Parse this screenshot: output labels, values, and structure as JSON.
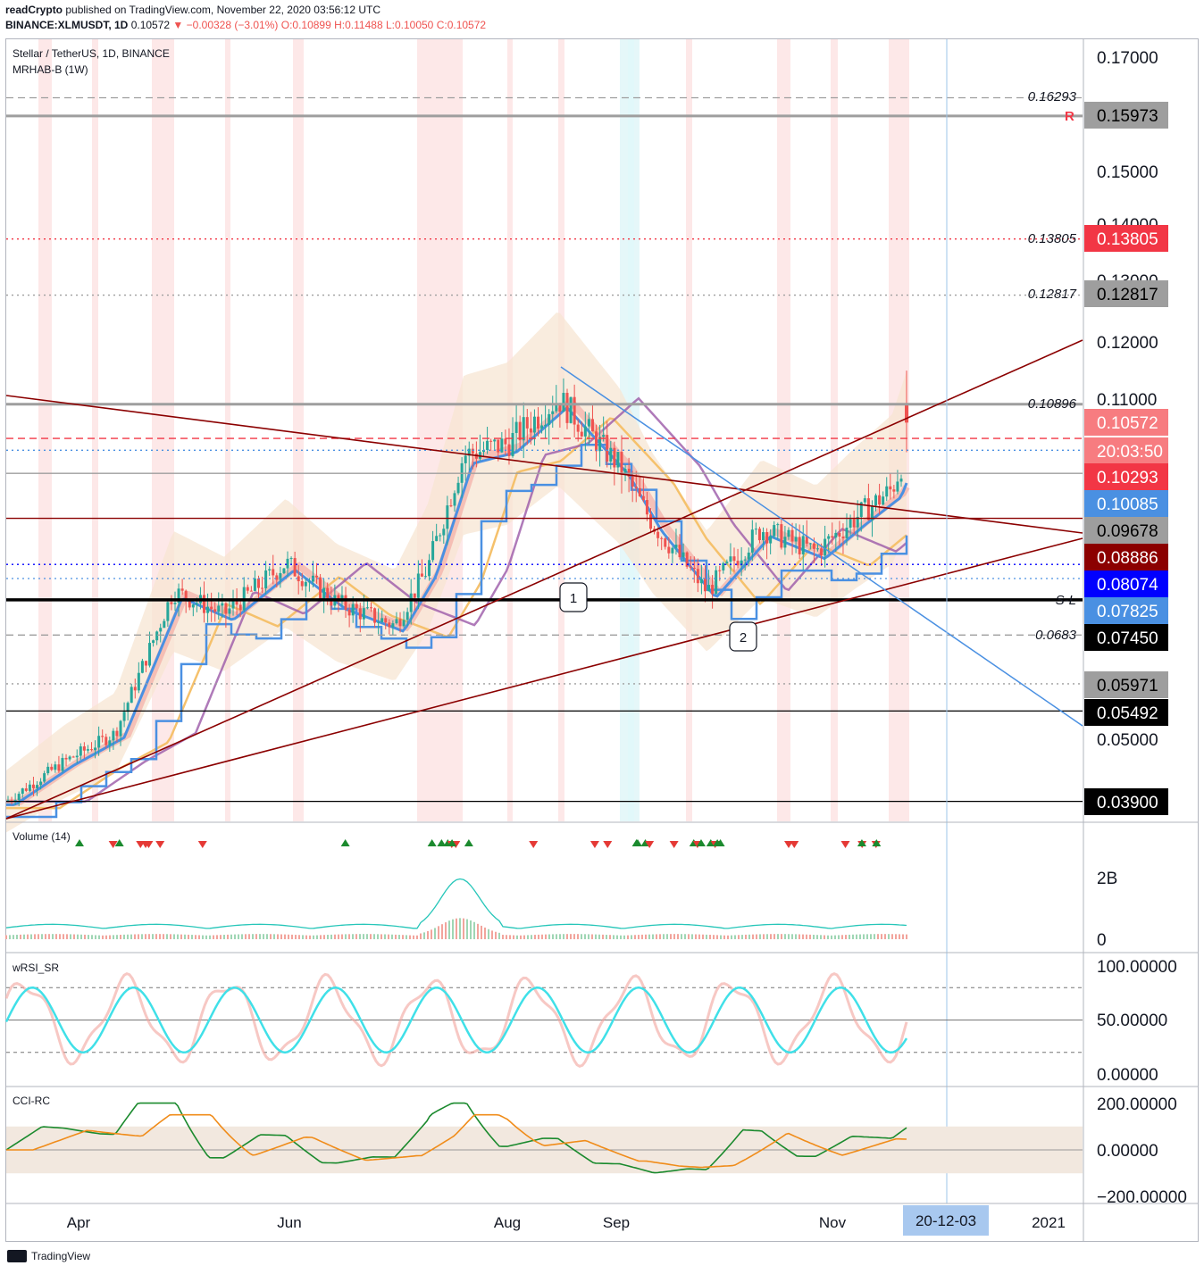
{
  "header": {
    "publisher": "readCrypto",
    "published_text": "published on TradingView.com, November 22, 2020 03:56:12 UTC",
    "symbol": "BINANCE:XLMUSDT, 1D",
    "last": "0.10572",
    "change": "▼ −0.00328 (−3.01%)",
    "open": "O:0.10899",
    "high": "H:0.11488",
    "low": "L:0.10050",
    "close": "C:0.10572"
  },
  "panels": {
    "main_title": "Stellar / TetherUS, 1D, BINANCE",
    "main_indicator": "MRHAB-B (1W)",
    "volume_title": "Volume (14)",
    "rsi_title": "wRSI_SR",
    "cci_title": "CCI-RC"
  },
  "price_axis": {
    "ticks": [
      "0.17000",
      "0.15000",
      "0.12000",
      "0.11000",
      "0.05000"
    ],
    "obscured_ticks": [
      "0.14000",
      "0.13000"
    ]
  },
  "price_labels": [
    {
      "text": "0.15973",
      "bg": "#9e9e9e",
      "fg": "#000000"
    },
    {
      "text": "0.13805",
      "bg": "#f23645",
      "fg": "#ffffff"
    },
    {
      "text": "0.12817",
      "bg": "#9e9e9e",
      "fg": "#000000"
    },
    {
      "text": "0.10572",
      "bg": "#f77c80",
      "fg": "#ffffff"
    },
    {
      "text": "20:03:50",
      "bg": "#f77c80",
      "fg": "#ffffff"
    },
    {
      "text": "0.10293",
      "bg": "#f23645",
      "fg": "#ffffff"
    },
    {
      "text": "0.10085",
      "bg": "#4a90e2",
      "fg": "#ffffff"
    },
    {
      "text": "0.09678",
      "bg": "#9e9e9e",
      "fg": "#000000"
    },
    {
      "text": "0.08886",
      "bg": "#8b0000",
      "fg": "#ffffff"
    },
    {
      "text": "0.08074",
      "bg": "#0000ff",
      "fg": "#ffffff"
    },
    {
      "text": "0.07825",
      "bg": "#4a90e2",
      "fg": "#ffffff"
    },
    {
      "text": "0.07450",
      "bg": "#000000",
      "fg": "#ffffff"
    },
    {
      "text": "0.05971",
      "bg": "#9e9e9e",
      "fg": "#000000"
    },
    {
      "text": "0.05492",
      "bg": "#000000",
      "fg": "#ffffff"
    },
    {
      "text": "0.03900",
      "bg": "#000000",
      "fg": "#ffffff"
    }
  ],
  "line_annotations": [
    "0.16293",
    "0.13805",
    "0.12817",
    "0.10896",
    "S-L",
    "0.0683"
  ],
  "marker_labels": [
    "R",
    "1",
    "2"
  ],
  "volume_axis": [
    "2B",
    "0"
  ],
  "rsi_axis": [
    "100.00000",
    "50.00000",
    "0.00000"
  ],
  "cci_axis": [
    "200.00000",
    "0.00000",
    "−200.00000"
  ],
  "time_axis": [
    "Apr",
    "Jun",
    "Aug",
    "Sep",
    "Nov",
    "2021"
  ],
  "cursor_date": "20-12-03",
  "footer": {
    "brand": "TradingView"
  },
  "chart_data": {
    "type": "candlestick",
    "title": "Stellar / TetherUS, 1D, BINANCE",
    "symbol": "BINANCE:XLMUSDT",
    "interval": "1D",
    "ohlc_last": {
      "open": 0.10899,
      "high": 0.11488,
      "low": 0.1005,
      "close": 0.10572
    },
    "ylim": [
      0.037,
      0.1735
    ],
    "trend_summary": [
      {
        "date": "2020-03-16",
        "price": 0.039
      },
      {
        "date": "2020-04-01",
        "price": 0.046
      },
      {
        "date": "2020-04-15",
        "price": 0.051
      },
      {
        "date": "2020-05-01",
        "price": 0.076
      },
      {
        "date": "2020-05-15",
        "price": 0.072
      },
      {
        "date": "2020-06-01",
        "price": 0.081
      },
      {
        "date": "2020-06-15",
        "price": 0.074
      },
      {
        "date": "2020-07-01",
        "price": 0.07
      },
      {
        "date": "2020-07-10",
        "price": 0.08
      },
      {
        "date": "2020-07-20",
        "price": 0.1
      },
      {
        "date": "2020-08-01",
        "price": 0.102
      },
      {
        "date": "2020-08-15",
        "price": 0.11
      },
      {
        "date": "2020-09-01",
        "price": 0.098
      },
      {
        "date": "2020-09-10",
        "price": 0.088
      },
      {
        "date": "2020-09-25",
        "price": 0.076
      },
      {
        "date": "2020-10-10",
        "price": 0.087
      },
      {
        "date": "2020-10-25",
        "price": 0.083
      },
      {
        "date": "2020-11-05",
        "price": 0.089
      },
      {
        "date": "2020-11-15",
        "price": 0.094
      },
      {
        "date": "2020-11-22",
        "price": 0.10572
      }
    ],
    "horizontal_levels": [
      {
        "price": 0.16293,
        "style": "dashed",
        "color": "#9e9e9e"
      },
      {
        "price": 0.15973,
        "style": "solid",
        "color": "#9e9e9e"
      },
      {
        "price": 0.13805,
        "style": "dotted",
        "color": "#f23645"
      },
      {
        "price": 0.12817,
        "style": "dotted",
        "color": "#9e9e9e"
      },
      {
        "price": 0.10896,
        "style": "solid",
        "color": "#9e9e9e"
      },
      {
        "price": 0.10293,
        "style": "dashed",
        "color": "#f23645"
      },
      {
        "price": 0.10085,
        "style": "dotted",
        "color": "#4a90e2"
      },
      {
        "price": 0.09678,
        "style": "solid",
        "color": "#9e9e9e"
      },
      {
        "price": 0.08886,
        "style": "solid",
        "color": "#8b0000"
      },
      {
        "price": 0.08074,
        "style": "dotted",
        "color": "#0000ff"
      },
      {
        "price": 0.07825,
        "style": "dotted",
        "color": "#4a90e2"
      },
      {
        "price": 0.0745,
        "style": "solid",
        "color": "#000000"
      },
      {
        "price": 0.0683,
        "style": "dashed",
        "color": "#9e9e9e"
      },
      {
        "price": 0.05971,
        "style": "dotted",
        "color": "#9e9e9e"
      },
      {
        "price": 0.05492,
        "style": "solid",
        "color": "#000000"
      },
      {
        "price": 0.039,
        "style": "solid",
        "color": "#000000"
      }
    ],
    "volume_ylim": [
      0,
      2700000000
    ],
    "rsi_ylim": [
      0,
      100
    ],
    "cci_ylim": [
      -200,
      200
    ]
  },
  "colors": {
    "up": "#26a69a",
    "down": "#ef5350",
    "accent_blue": "#4a90e2",
    "trend_red": "#8b0000"
  }
}
